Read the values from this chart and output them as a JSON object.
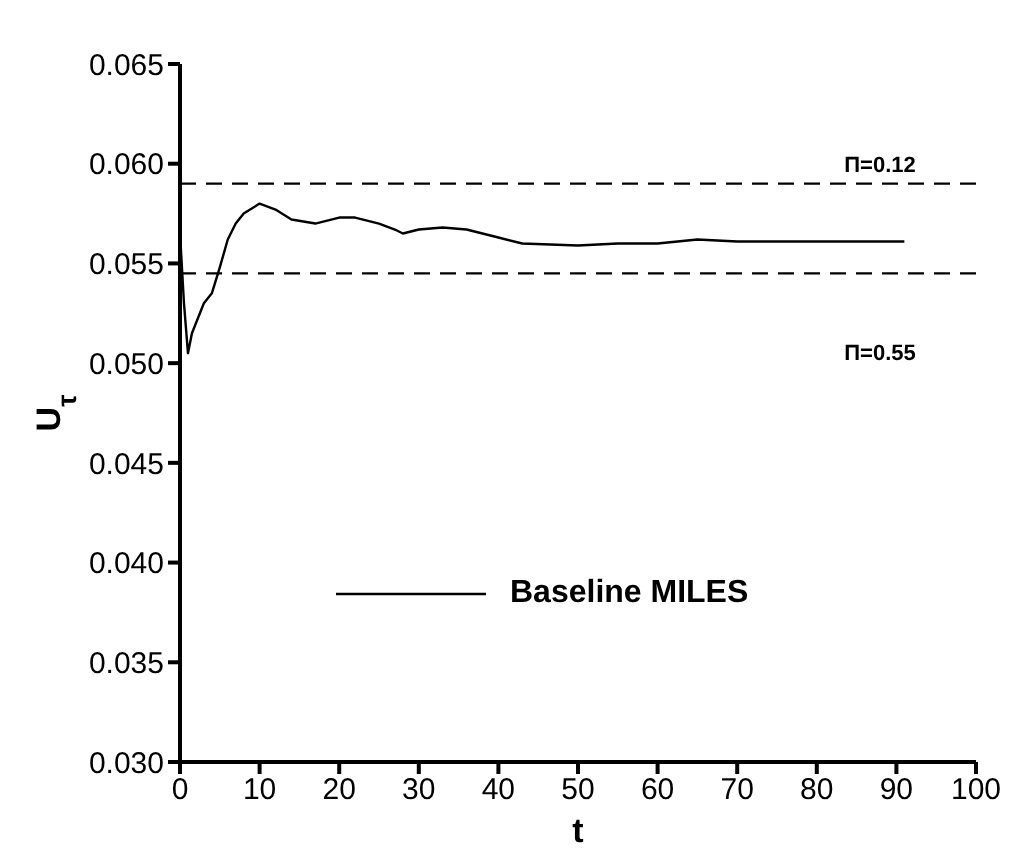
{
  "chart_data": {
    "type": "line",
    "xlabel": "t",
    "ylabel": "U$_{τ}$",
    "xlim": [
      0,
      100
    ],
    "xticks": [
      0,
      10,
      20,
      30,
      40,
      50,
      60,
      70,
      80,
      90,
      100
    ],
    "ylim": [
      0.03,
      0.065
    ],
    "yticks": [
      {
        "value": 0.03,
        "label": "0.030"
      },
      {
        "value": 0.035,
        "label": "0.035"
      },
      {
        "value": 0.04,
        "label": "0.040"
      },
      {
        "value": 0.045,
        "label": "0.045"
      },
      {
        "value": 0.05,
        "label": "0.050"
      },
      {
        "value": 0.055,
        "label": "0.055"
      },
      {
        "value": 0.06,
        "label": "0.060"
      },
      {
        "value": 0.065,
        "label": "0.065"
      }
    ],
    "x": [
      0,
      0.5,
      1,
      1.5,
      2,
      3,
      4,
      5,
      6,
      7,
      8,
      10,
      12,
      14,
      17,
      20,
      22,
      25,
      27,
      28,
      30,
      33,
      36,
      40,
      43,
      50,
      55,
      60,
      65,
      70,
      75,
      80,
      85,
      91
    ],
    "series": [
      {
        "name": "Baseline MILES",
        "color": "#000000",
        "values": [
          0.0565,
          0.053,
          0.0505,
          0.0515,
          0.052,
          0.053,
          0.0535,
          0.0548,
          0.0562,
          0.057,
          0.0575,
          0.058,
          0.0577,
          0.0572,
          0.057,
          0.0573,
          0.0573,
          0.057,
          0.0567,
          0.0565,
          0.0567,
          0.0568,
          0.0567,
          0.0563,
          0.056,
          0.0559,
          0.056,
          0.056,
          0.0562,
          0.0561,
          0.0561,
          0.0561,
          0.0561,
          0.0561
        ]
      }
    ],
    "ref_lines": [
      {
        "axis": "y",
        "value": 0.059,
        "line_style": "dashed",
        "color": "#000000"
      },
      {
        "axis": "y",
        "value": 0.0545,
        "line_style": "dashed",
        "color": "#000000"
      }
    ],
    "annotations": [
      "Π=0.12",
      "Π=0.55"
    ],
    "legend": "bottom",
    "marker": "none",
    "line_style": "solid"
  }
}
